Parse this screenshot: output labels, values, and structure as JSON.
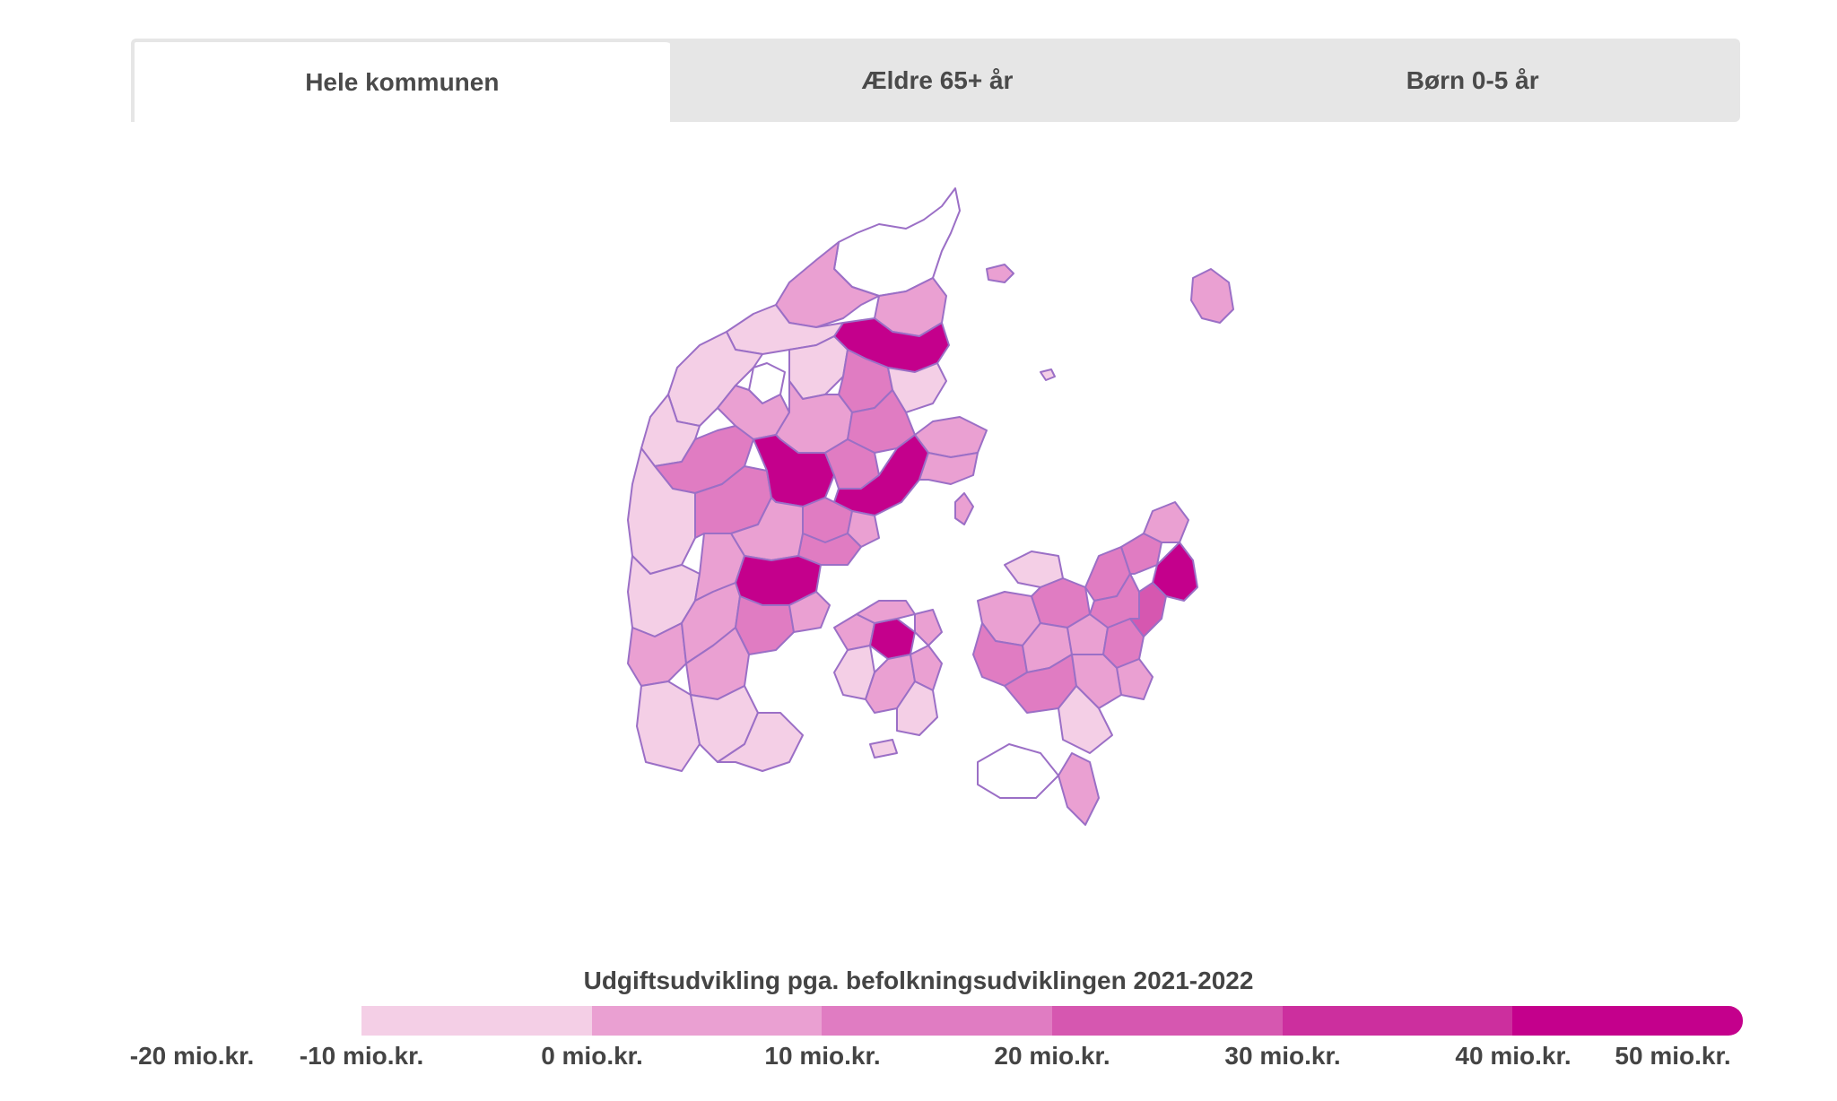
{
  "tabs": [
    {
      "label": "Hele kommunen",
      "active": true
    },
    {
      "label": "Ældre 65+ år",
      "active": false
    },
    {
      "label": "Børn 0-5 år",
      "active": false
    }
  ],
  "legend": {
    "title": "Udgiftsudvikling pga. befolkningsudviklingen 2021-2022",
    "colors": [
      "#f4cfe6",
      "#eaa0d2",
      "#e07cc2",
      "#d657b0",
      "#cc2f9e",
      "#c4008c"
    ],
    "labels": [
      "-20 mio.kr.",
      "-10 mio.kr.",
      "0 mio.kr.",
      "10 mio.kr.",
      "20 mio.kr.",
      "30 mio.kr.",
      "40 mio.kr.",
      "50 mio.kr."
    ]
  },
  "colors": {
    "border": "#9b6fc6",
    "tab_bg": "#e6e6e6",
    "white": "#ffffff"
  }
}
